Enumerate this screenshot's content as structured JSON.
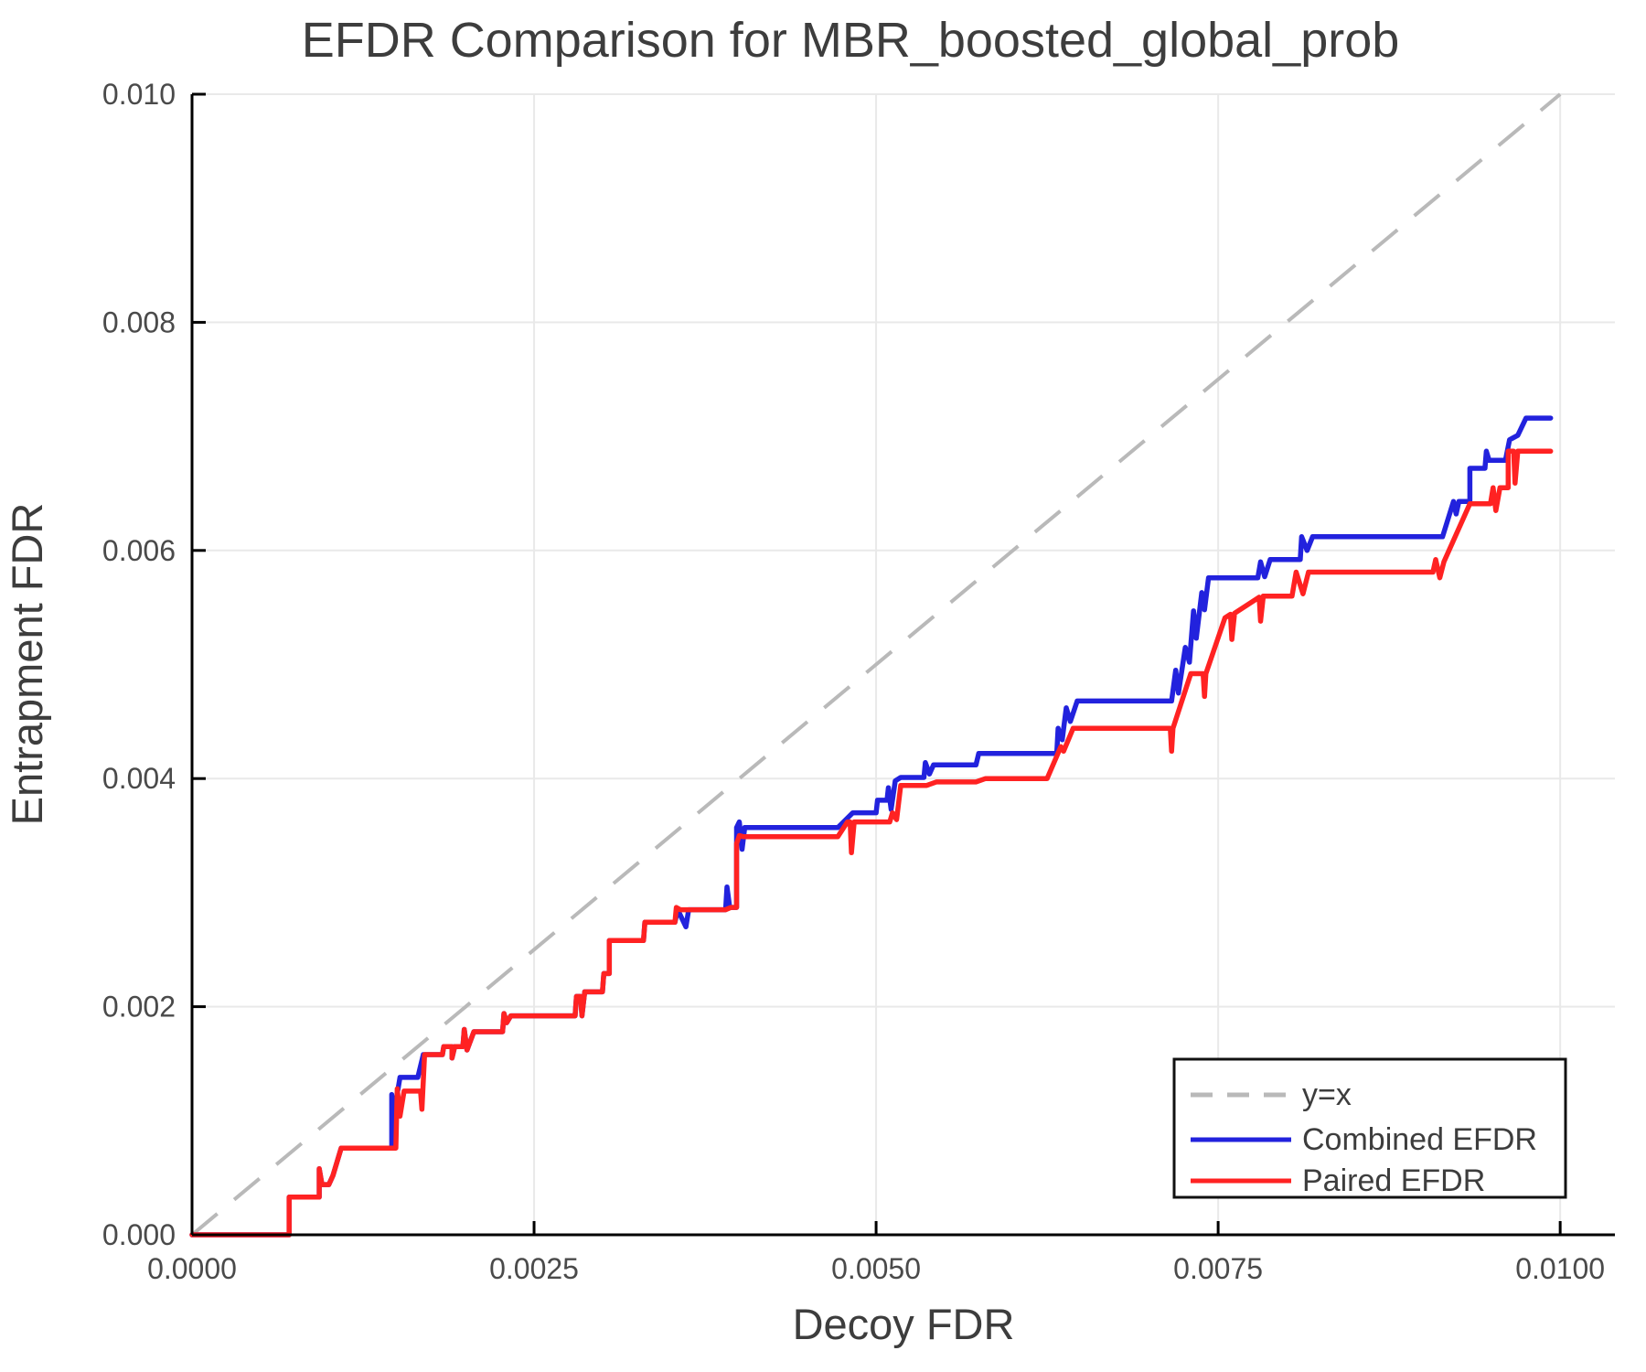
{
  "chart_data": {
    "type": "line",
    "title": "EFDR Comparison for MBR_boosted_global_prob",
    "xlabel": "Decoy FDR",
    "ylabel": "Entrapment FDR",
    "xlim": [
      0,
      0.0104
    ],
    "ylim": [
      0,
      0.01
    ],
    "grid": true,
    "legend_position": "lower right",
    "x_ticks": {
      "values": [
        0,
        0.0025,
        0.005,
        0.0075,
        0.01
      ],
      "labels": [
        "0.0000",
        "0.0025",
        "0.0050",
        "0.0075",
        "0.0100"
      ]
    },
    "y_ticks": {
      "values": [
        0,
        0.002,
        0.004,
        0.006,
        0.008,
        0.01
      ],
      "labels": [
        "0.000",
        "0.002",
        "0.004",
        "0.006",
        "0.008",
        "0.010"
      ]
    },
    "reference_line": {
      "label": "y=x",
      "style": "dashed",
      "color": "#b9b9b9",
      "from": [
        0,
        0
      ],
      "to": [
        0.01,
        0.01
      ]
    },
    "colors": {
      "combined": "#2222dd",
      "paired": "#ff2222",
      "grid": "#e9e9e9",
      "axis": "#000000",
      "text": "#3d3d3d"
    },
    "value_scale": 0.0001,
    "series": [
      {
        "name": "Combined EFDR",
        "color": "#2222dd",
        "points": [
          [
            0,
            0
          ],
          [
            7.1,
            0
          ],
          [
            7.1,
            3.3
          ],
          [
            9.3,
            3.3
          ],
          [
            9.3,
            5.8
          ],
          [
            9.5,
            4.4
          ],
          [
            10.0,
            4.4
          ],
          [
            10.3,
            5.2
          ],
          [
            10.6,
            6.4
          ],
          [
            10.9,
            7.6
          ],
          [
            14.6,
            7.6
          ],
          [
            14.6,
            12.3
          ],
          [
            14.7,
            10.2
          ],
          [
            15.2,
            13.8
          ],
          [
            16.5,
            13.8
          ],
          [
            16.9,
            15.8
          ],
          [
            18.3,
            15.8
          ],
          [
            18.4,
            16.5
          ],
          [
            19.0,
            16.5
          ],
          [
            19.0,
            15.5
          ],
          [
            19.2,
            16.5
          ],
          [
            19.8,
            16.5
          ],
          [
            19.9,
            18.0
          ],
          [
            20.1,
            16.2
          ],
          [
            20.6,
            17.8
          ],
          [
            22.7,
            17.8
          ],
          [
            22.8,
            19.4
          ],
          [
            23.0,
            18.6
          ],
          [
            23.3,
            19.2
          ],
          [
            28.0,
            19.2
          ],
          [
            28.1,
            20.9
          ],
          [
            28.4,
            20.9
          ],
          [
            28.5,
            19.2
          ],
          [
            28.7,
            21.3
          ],
          [
            30.0,
            21.3
          ],
          [
            30.1,
            22.9
          ],
          [
            30.5,
            22.9
          ],
          [
            30.5,
            25.8
          ],
          [
            33.0,
            25.8
          ],
          [
            33.1,
            27.4
          ],
          [
            35.3,
            27.4
          ],
          [
            35.5,
            28.5
          ],
          [
            36.1,
            27.0
          ],
          [
            36.3,
            28.5
          ],
          [
            39.0,
            28.5
          ],
          [
            39.1,
            30.5
          ],
          [
            39.3,
            28.7
          ],
          [
            39.8,
            28.7
          ],
          [
            39.8,
            35.7
          ],
          [
            40.0,
            36.2
          ],
          [
            40.2,
            33.8
          ],
          [
            40.4,
            35.7
          ],
          [
            47.2,
            35.7
          ],
          [
            48.3,
            37.0
          ],
          [
            50.0,
            37.0
          ],
          [
            50.1,
            38.1
          ],
          [
            50.8,
            38.1
          ],
          [
            50.9,
            39.2
          ],
          [
            51.1,
            37.3
          ],
          [
            51.4,
            39.8
          ],
          [
            51.8,
            40.1
          ],
          [
            53.5,
            40.1
          ],
          [
            53.6,
            41.4
          ],
          [
            53.9,
            40.4
          ],
          [
            54.2,
            41.2
          ],
          [
            57.3,
            41.2
          ],
          [
            57.5,
            42.2
          ],
          [
            63.2,
            42.2
          ],
          [
            63.3,
            44.4
          ],
          [
            63.6,
            43.4
          ],
          [
            63.9,
            46.2
          ],
          [
            64.2,
            45.0
          ],
          [
            64.7,
            46.8
          ],
          [
            71.6,
            46.8
          ],
          [
            71.9,
            49.5
          ],
          [
            72.1,
            47.5
          ],
          [
            72.6,
            51.5
          ],
          [
            72.9,
            50.2
          ],
          [
            73.2,
            54.7
          ],
          [
            73.4,
            52.3
          ],
          [
            73.8,
            56.3
          ],
          [
            74.0,
            54.8
          ],
          [
            74.3,
            57.6
          ],
          [
            77.9,
            57.6
          ],
          [
            78.1,
            59.0
          ],
          [
            78.4,
            57.7
          ],
          [
            78.8,
            59.2
          ],
          [
            81.0,
            59.2
          ],
          [
            81.1,
            61.2
          ],
          [
            81.5,
            60.0
          ],
          [
            81.9,
            61.2
          ],
          [
            91.4,
            61.2
          ],
          [
            92.2,
            64.3
          ],
          [
            92.4,
            63.2
          ],
          [
            92.6,
            64.3
          ],
          [
            93.4,
            64.3
          ],
          [
            93.4,
            67.2
          ],
          [
            94.5,
            67.2
          ],
          [
            94.6,
            68.7
          ],
          [
            94.8,
            67.9
          ],
          [
            96.0,
            67.9
          ],
          [
            96.3,
            69.7
          ],
          [
            96.9,
            70.1
          ],
          [
            97.5,
            71.6
          ],
          [
            99.3,
            71.6
          ]
        ]
      },
      {
        "name": "Paired EFDR",
        "color": "#ff2222",
        "points": [
          [
            0,
            0
          ],
          [
            7.1,
            0
          ],
          [
            7.1,
            3.3
          ],
          [
            9.3,
            3.3
          ],
          [
            9.3,
            5.8
          ],
          [
            9.5,
            4.4
          ],
          [
            10.0,
            4.4
          ],
          [
            10.3,
            5.2
          ],
          [
            10.6,
            6.4
          ],
          [
            10.9,
            7.6
          ],
          [
            14.9,
            7.6
          ],
          [
            15.0,
            12.8
          ],
          [
            15.2,
            10.4
          ],
          [
            15.5,
            12.6
          ],
          [
            16.7,
            12.6
          ],
          [
            16.8,
            11.0
          ],
          [
            17.0,
            15.8
          ],
          [
            18.3,
            15.8
          ],
          [
            18.4,
            16.5
          ],
          [
            19.0,
            16.5
          ],
          [
            19.0,
            15.5
          ],
          [
            19.2,
            16.5
          ],
          [
            19.8,
            16.5
          ],
          [
            19.9,
            18.0
          ],
          [
            20.1,
            16.2
          ],
          [
            20.6,
            17.8
          ],
          [
            22.7,
            17.8
          ],
          [
            22.8,
            19.4
          ],
          [
            23.0,
            18.6
          ],
          [
            23.3,
            19.2
          ],
          [
            28.0,
            19.2
          ],
          [
            28.1,
            20.9
          ],
          [
            28.4,
            20.9
          ],
          [
            28.5,
            19.2
          ],
          [
            28.7,
            21.3
          ],
          [
            30.0,
            21.3
          ],
          [
            30.1,
            22.9
          ],
          [
            30.5,
            22.9
          ],
          [
            30.5,
            25.8
          ],
          [
            33.0,
            25.8
          ],
          [
            33.1,
            27.4
          ],
          [
            35.3,
            27.4
          ],
          [
            35.4,
            28.7
          ],
          [
            35.7,
            28.5
          ],
          [
            39.0,
            28.5
          ],
          [
            39.4,
            28.7
          ],
          [
            39.8,
            28.7
          ],
          [
            39.8,
            34.3
          ],
          [
            40.0,
            35.0
          ],
          [
            40.3,
            34.9
          ],
          [
            47.2,
            34.9
          ],
          [
            47.9,
            36.2
          ],
          [
            48.1,
            36.2
          ],
          [
            48.2,
            33.5
          ],
          [
            48.4,
            36.2
          ],
          [
            51.0,
            36.2
          ],
          [
            51.2,
            37.0
          ],
          [
            51.5,
            36.4
          ],
          [
            51.8,
            39.4
          ],
          [
            53.7,
            39.4
          ],
          [
            54.4,
            39.7
          ],
          [
            57.3,
            39.7
          ],
          [
            58.0,
            40.0
          ],
          [
            62.5,
            40.0
          ],
          [
            63.5,
            42.8
          ],
          [
            63.7,
            42.4
          ],
          [
            64.4,
            44.4
          ],
          [
            71.5,
            44.4
          ],
          [
            71.6,
            42.4
          ],
          [
            71.7,
            44.4
          ],
          [
            73.0,
            49.2
          ],
          [
            73.9,
            49.2
          ],
          [
            74.0,
            47.2
          ],
          [
            74.1,
            49.2
          ],
          [
            75.5,
            54.1
          ],
          [
            75.9,
            54.4
          ],
          [
            76.0,
            52.2
          ],
          [
            76.2,
            54.5
          ],
          [
            78.0,
            55.9
          ],
          [
            78.1,
            53.8
          ],
          [
            78.3,
            56.0
          ],
          [
            80.4,
            56.0
          ],
          [
            80.7,
            58.1
          ],
          [
            81.2,
            56.2
          ],
          [
            81.6,
            58.1
          ],
          [
            90.7,
            58.1
          ],
          [
            90.9,
            59.2
          ],
          [
            91.2,
            57.6
          ],
          [
            91.5,
            59.0
          ],
          [
            93.4,
            64.1
          ],
          [
            94.9,
            64.1
          ],
          [
            95.1,
            65.5
          ],
          [
            95.3,
            63.5
          ],
          [
            95.6,
            65.5
          ],
          [
            96.2,
            65.5
          ],
          [
            96.2,
            68.7
          ],
          [
            96.6,
            68.7
          ],
          [
            96.7,
            65.9
          ],
          [
            96.9,
            68.7
          ],
          [
            99.3,
            68.7
          ]
        ]
      }
    ],
    "legend": {
      "entries": [
        "y=x",
        "Combined EFDR",
        "Paired EFDR"
      ]
    }
  }
}
